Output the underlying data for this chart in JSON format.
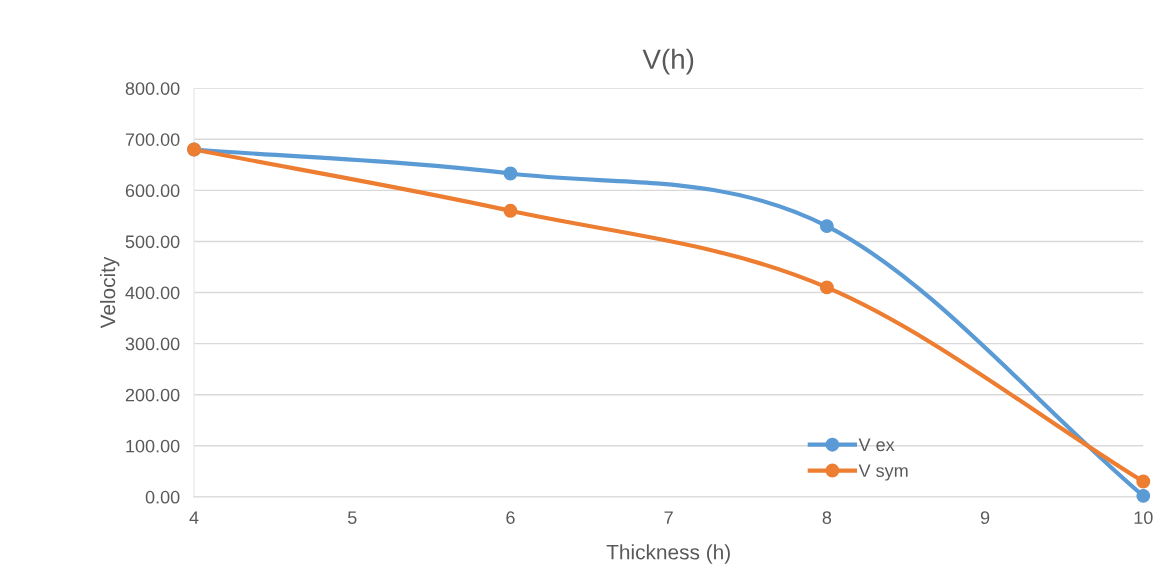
{
  "chart_data": {
    "type": "line",
    "title": "V(h)",
    "xlabel": "Thickness (h)",
    "ylabel": "Velocity",
    "x": [
      4,
      6,
      8,
      10
    ],
    "series": [
      {
        "name": "V ex",
        "color": "#5b9bd5",
        "values": [
          680,
          633,
          530,
          2
        ]
      },
      {
        "name": "V sym",
        "color": "#ed7d31",
        "values": [
          680,
          560,
          410,
          30
        ]
      }
    ],
    "xlim": [
      4,
      10
    ],
    "xticks": [
      4,
      5,
      6,
      7,
      8,
      9,
      10
    ],
    "ylim": [
      0,
      800
    ],
    "yticks": [
      {
        "value": 0,
        "label": "0.00"
      },
      {
        "value": 100,
        "label": "100.00"
      },
      {
        "value": 200,
        "label": "200.00"
      },
      {
        "value": 300,
        "label": "300.00"
      },
      {
        "value": 400,
        "label": "400.00"
      },
      {
        "value": 500,
        "label": "500.00"
      },
      {
        "value": 600,
        "label": "600.00"
      },
      {
        "value": 700,
        "label": "700.00"
      },
      {
        "value": 800,
        "label": "800.00"
      }
    ],
    "grid": "y",
    "legend": "bottom right",
    "marker": "circle",
    "line_style": "solid"
  }
}
